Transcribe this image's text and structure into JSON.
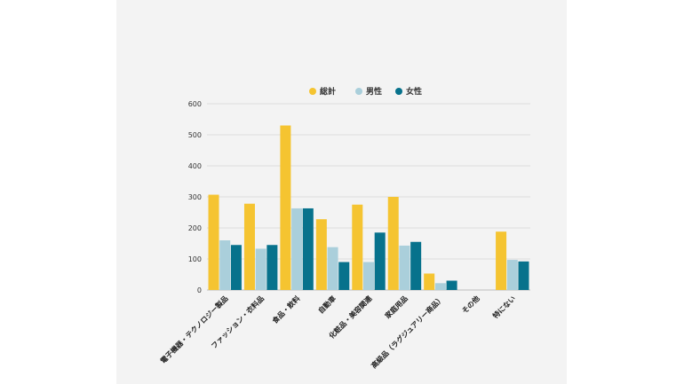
{
  "chart_data": {
    "type": "bar",
    "categories": [
      "電子機器・テクノロジー製品",
      "ファッション・衣料品",
      "食品・飲料",
      "自動車",
      "化粧品・美容関連",
      "家庭用品",
      "高級品（ラグジュアリー商品）",
      "その他",
      "特にない"
    ],
    "series": [
      {
        "name": "総計",
        "color": "#f5c431",
        "values": [
          307,
          278,
          530,
          228,
          275,
          300,
          53,
          0,
          188
        ]
      },
      {
        "name": "男性",
        "color": "#aacfdb",
        "values": [
          160,
          133,
          263,
          138,
          90,
          143,
          22,
          0,
          97
        ]
      },
      {
        "name": "女性",
        "color": "#07728c",
        "values": [
          145,
          145,
          263,
          90,
          185,
          155,
          30,
          0,
          92
        ]
      }
    ],
    "ylim": [
      0,
      600
    ],
    "yticks": [
      "0",
      "100",
      "200",
      "300",
      "400",
      "500",
      "600"
    ],
    "grid": true,
    "legend_position": "top"
  }
}
